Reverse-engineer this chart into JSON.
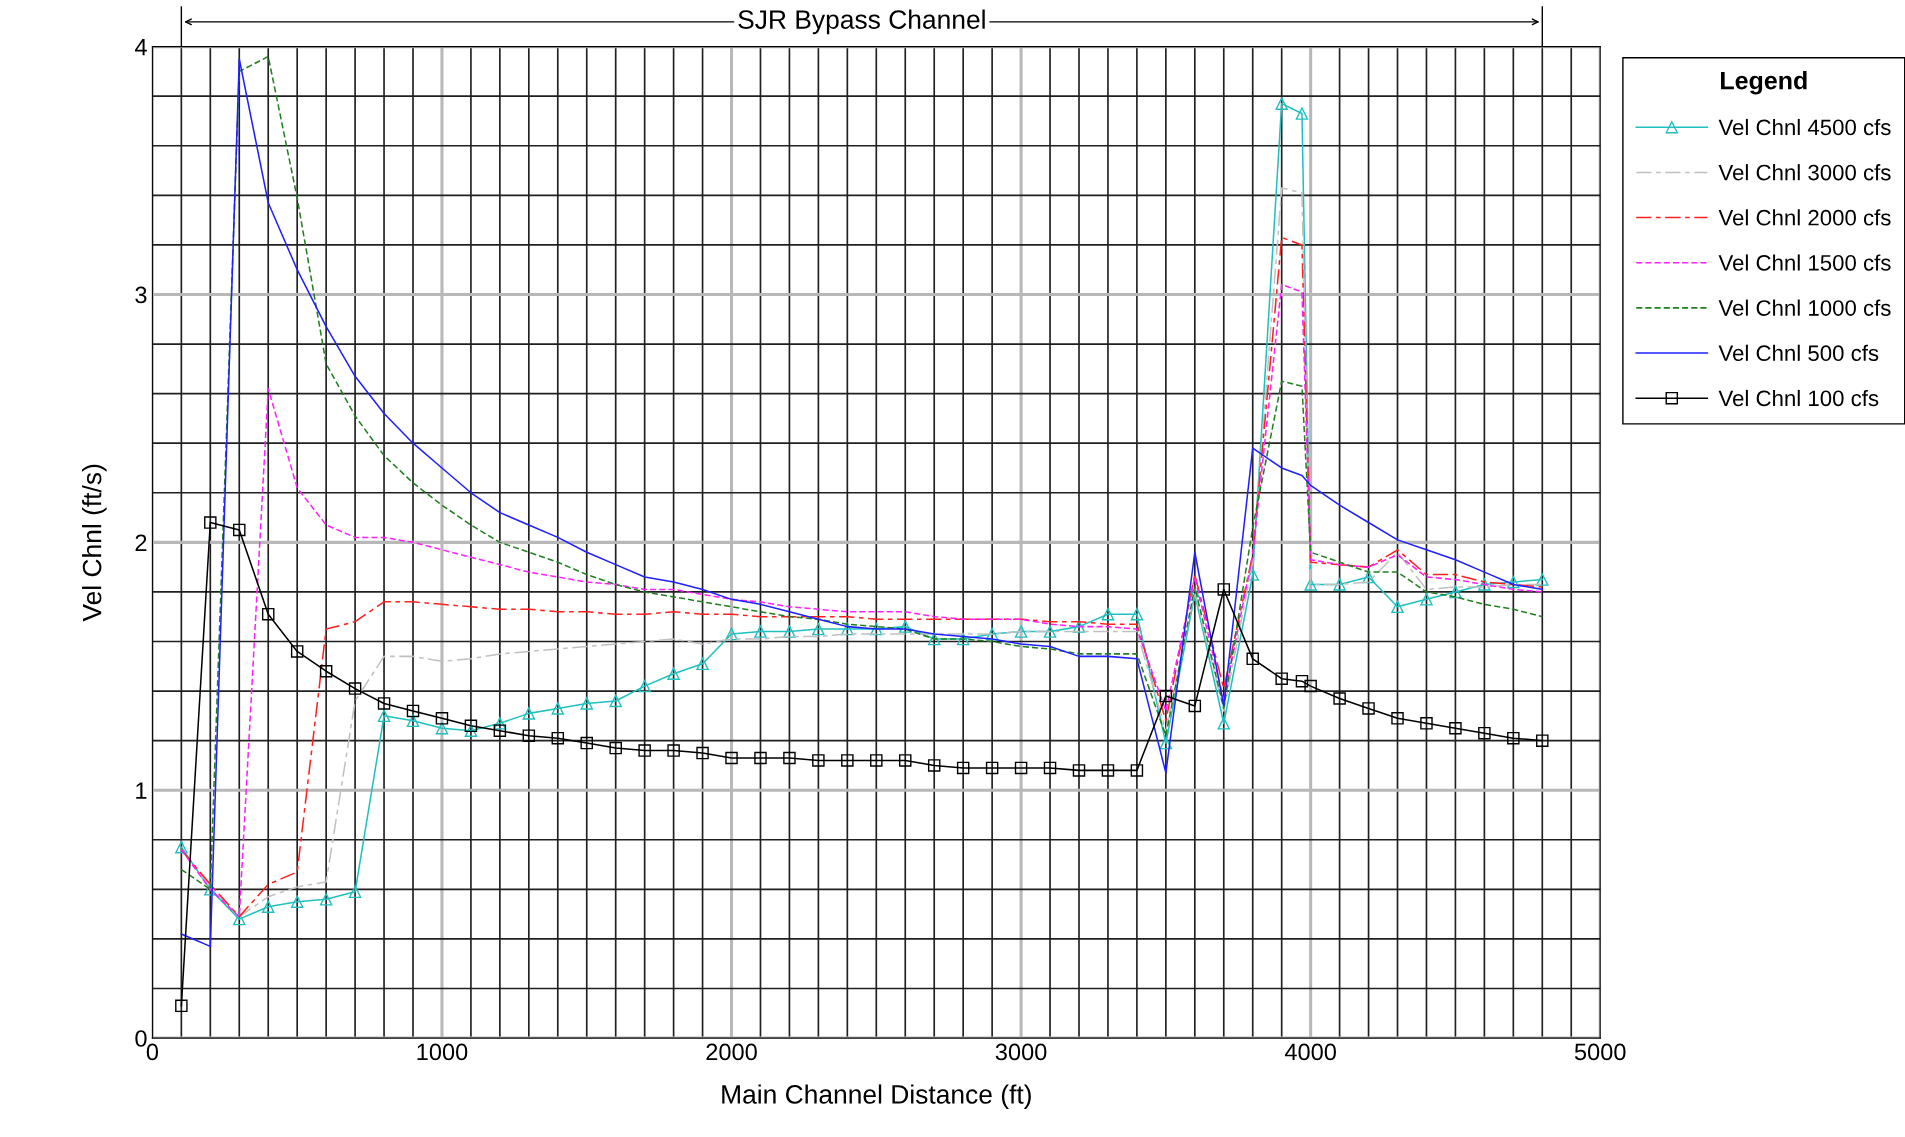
{
  "chart_data": {
    "type": "line",
    "xlabel": "Main Channel Distance (ft)",
    "ylabel": "Vel Chnl (ft/s)",
    "legend_title": "Legend",
    "x": [
      100,
      200,
      300,
      400,
      500,
      600,
      700,
      800,
      900,
      1000,
      1100,
      1200,
      1300,
      1400,
      1500,
      1600,
      1700,
      1800,
      1900,
      2000,
      2100,
      2200,
      2300,
      2400,
      2500,
      2600,
      2700,
      2800,
      2900,
      3000,
      3100,
      3200,
      3300,
      3400,
      3500,
      3600,
      3700,
      3800,
      3900,
      3970,
      4000,
      4100,
      4200,
      4300,
      4400,
      4500,
      4600,
      4700,
      4800
    ],
    "xlim": [
      0,
      5000
    ],
    "xticks": [
      0,
      1000,
      2000,
      3000,
      4000,
      5000
    ],
    "ylim": [
      0,
      4
    ],
    "yticks": [
      0,
      1,
      2,
      3,
      4
    ],
    "grid": true,
    "legend": "right",
    "annotations": [
      "SJR Bypass Channel"
    ],
    "series": [
      {
        "name": "Vel Chnl 4500 cfs",
        "color": "#20c0c0",
        "marker": "triangle",
        "line_style": "solid",
        "values": [
          0.77,
          0.6,
          0.48,
          0.53,
          0.55,
          0.56,
          0.59,
          1.3,
          1.28,
          1.25,
          1.24,
          1.27,
          1.31,
          1.33,
          1.35,
          1.36,
          1.42,
          1.47,
          1.51,
          1.63,
          1.64,
          1.64,
          1.65,
          1.65,
          1.65,
          1.66,
          1.61,
          1.61,
          1.63,
          1.64,
          1.64,
          1.66,
          1.71,
          1.71,
          1.19,
          1.79,
          1.27,
          1.87,
          3.77,
          3.73,
          1.83,
          1.83,
          1.86,
          1.74,
          1.77,
          1.8,
          1.83,
          1.84,
          1.85
        ]
      },
      {
        "name": "Vel Chnl 3000 cfs",
        "color": "#c0c0c0",
        "marker": "none",
        "line_style": "dashdot",
        "values": [
          0.76,
          0.61,
          0.49,
          0.57,
          0.61,
          0.63,
          1.36,
          1.54,
          1.54,
          1.52,
          1.53,
          1.55,
          1.56,
          1.57,
          1.58,
          1.59,
          1.6,
          1.61,
          1.59,
          1.61,
          1.61,
          1.62,
          1.62,
          1.63,
          1.63,
          1.63,
          1.63,
          1.63,
          1.63,
          1.64,
          1.64,
          1.64,
          1.64,
          1.64,
          1.24,
          1.8,
          1.32,
          1.92,
          3.43,
          3.41,
          1.83,
          1.83,
          1.84,
          1.96,
          1.81,
          1.82,
          1.82,
          1.83,
          1.83
        ]
      },
      {
        "name": "Vel Chnl 2000 cfs",
        "color": "#ff2020",
        "marker": "none",
        "line_style": "dashdot",
        "values": [
          0.76,
          0.62,
          0.49,
          0.62,
          0.67,
          1.65,
          1.68,
          1.76,
          1.76,
          1.75,
          1.74,
          1.73,
          1.73,
          1.72,
          1.72,
          1.71,
          1.71,
          1.72,
          1.71,
          1.71,
          1.7,
          1.7,
          1.7,
          1.7,
          1.69,
          1.69,
          1.69,
          1.69,
          1.69,
          1.69,
          1.68,
          1.68,
          1.67,
          1.67,
          1.28,
          1.87,
          1.41,
          1.95,
          3.23,
          3.2,
          1.92,
          1.91,
          1.9,
          1.97,
          1.87,
          1.87,
          1.84,
          1.83,
          1.82
        ]
      },
      {
        "name": "Vel Chnl 1500 cfs",
        "color": "#ff20ff",
        "marker": "none",
        "line_style": "dashed",
        "values": [
          0.76,
          0.6,
          0.49,
          2.62,
          2.22,
          2.07,
          2.02,
          2.02,
          2.0,
          1.97,
          1.94,
          1.91,
          1.88,
          1.86,
          1.84,
          1.83,
          1.81,
          1.81,
          1.79,
          1.77,
          1.76,
          1.74,
          1.73,
          1.72,
          1.72,
          1.72,
          1.7,
          1.69,
          1.69,
          1.69,
          1.67,
          1.66,
          1.66,
          1.65,
          1.32,
          1.86,
          1.36,
          1.95,
          3.04,
          3.01,
          1.93,
          1.91,
          1.9,
          1.95,
          1.86,
          1.85,
          1.83,
          1.81,
          1.8
        ]
      },
      {
        "name": "Vel Chnl 1000 cfs",
        "color": "#208020",
        "marker": "none",
        "line_style": "dashed",
        "values": [
          0.68,
          0.6,
          3.9,
          3.96,
          3.39,
          2.72,
          2.51,
          2.35,
          2.24,
          2.15,
          2.07,
          2.0,
          1.96,
          1.92,
          1.87,
          1.83,
          1.8,
          1.78,
          1.76,
          1.74,
          1.72,
          1.7,
          1.69,
          1.67,
          1.66,
          1.65,
          1.61,
          1.61,
          1.6,
          1.58,
          1.57,
          1.55,
          1.55,
          1.55,
          1.22,
          1.82,
          1.33,
          2.06,
          2.65,
          2.63,
          1.96,
          1.92,
          1.88,
          1.88,
          1.8,
          1.78,
          1.75,
          1.73,
          1.7
        ]
      },
      {
        "name": "Vel Chnl 500 cfs",
        "color": "#2020ff",
        "marker": "none",
        "line_style": "solid",
        "values": [
          0.42,
          0.37,
          3.95,
          3.37,
          3.1,
          2.87,
          2.67,
          2.52,
          2.4,
          2.3,
          2.2,
          2.12,
          2.07,
          2.02,
          1.96,
          1.91,
          1.86,
          1.84,
          1.81,
          1.77,
          1.75,
          1.72,
          1.69,
          1.66,
          1.65,
          1.65,
          1.63,
          1.62,
          1.61,
          1.59,
          1.58,
          1.54,
          1.54,
          1.53,
          1.07,
          1.96,
          1.34,
          2.38,
          2.3,
          2.27,
          2.23,
          2.15,
          2.08,
          2.01,
          1.97,
          1.93,
          1.88,
          1.83,
          1.81
        ]
      },
      {
        "name": "Vel Chnl 100 cfs",
        "color": "#000000",
        "marker": "square",
        "line_style": "solid",
        "values": [
          0.13,
          2.08,
          2.05,
          1.71,
          1.56,
          1.48,
          1.41,
          1.35,
          1.32,
          1.29,
          1.26,
          1.24,
          1.22,
          1.21,
          1.19,
          1.17,
          1.16,
          1.16,
          1.15,
          1.13,
          1.13,
          1.13,
          1.12,
          1.12,
          1.12,
          1.12,
          1.1,
          1.09,
          1.09,
          1.09,
          1.09,
          1.08,
          1.08,
          1.08,
          1.38,
          1.34,
          1.81,
          1.53,
          1.45,
          1.44,
          1.42,
          1.37,
          1.33,
          1.29,
          1.27,
          1.25,
          1.23,
          1.21,
          1.2
        ]
      }
    ]
  }
}
